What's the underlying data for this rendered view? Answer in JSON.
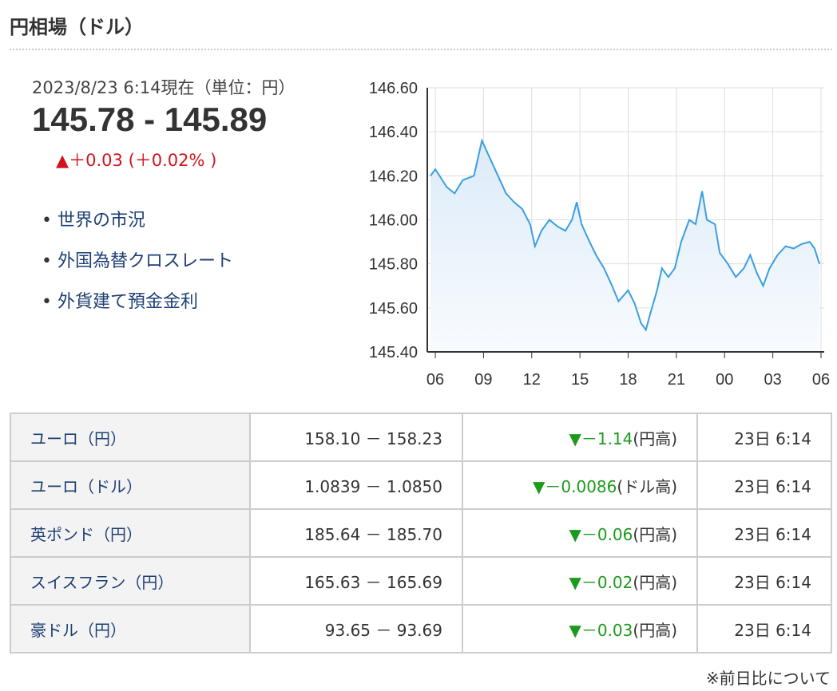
{
  "header": {
    "title": "円相場（ドル）"
  },
  "quote": {
    "timestamp": "2023/8/23 6:14現在（単位：円）",
    "rate": "145.78 - 145.89",
    "change": "▲＋0.03 (＋0.02% )"
  },
  "links": [
    "世界の市況",
    "外国為替クロスレート",
    "外貨建て預金金利"
  ],
  "chart_data": {
    "type": "line",
    "color": "#3a9ee0",
    "grid": true,
    "x": [
      -0.3,
      0.0,
      0.7,
      1.2,
      1.7,
      2.4,
      2.9,
      3.4,
      3.9,
      4.4,
      4.9,
      5.4,
      5.9,
      6.2,
      6.6,
      7.1,
      7.6,
      8.1,
      8.5,
      8.8,
      9.1,
      9.6,
      10.0,
      10.5,
      11.0,
      11.4,
      12.0,
      12.4,
      12.8,
      13.1,
      13.4,
      13.8,
      14.1,
      14.5,
      14.9,
      15.3,
      15.8,
      16.2,
      16.6,
      16.9,
      17.4,
      17.7,
      18.2,
      18.7,
      19.2,
      19.6,
      20.0,
      20.4,
      20.8,
      21.3,
      21.8,
      22.3,
      22.8,
      23.3,
      23.6,
      23.9
    ],
    "values": [
      146.2,
      146.23,
      146.15,
      146.12,
      146.18,
      146.2,
      146.36,
      146.28,
      146.2,
      146.12,
      146.08,
      146.05,
      145.98,
      145.88,
      145.95,
      146.0,
      145.97,
      145.95,
      146.0,
      146.08,
      145.98,
      145.9,
      145.84,
      145.78,
      145.7,
      145.63,
      145.68,
      145.62,
      145.53,
      145.5,
      145.58,
      145.68,
      145.78,
      145.74,
      145.78,
      145.9,
      146.0,
      145.98,
      146.13,
      146.0,
      145.98,
      145.85,
      145.8,
      145.74,
      145.78,
      145.84,
      145.76,
      145.7,
      145.78,
      145.84,
      145.88,
      145.87,
      145.89,
      145.9,
      145.87,
      145.8
    ],
    "xlim": [
      -0.5,
      24.2
    ],
    "xticks": [
      {
        "value": 0,
        "label": "06"
      },
      {
        "value": 3,
        "label": "09"
      },
      {
        "value": 6,
        "label": "12"
      },
      {
        "value": 9,
        "label": "15"
      },
      {
        "value": 12,
        "label": "18"
      },
      {
        "value": 15,
        "label": "21"
      },
      {
        "value": 18,
        "label": "00"
      },
      {
        "value": 21,
        "label": "03"
      },
      {
        "value": 24,
        "label": "06"
      }
    ],
    "ylim": [
      145.4,
      146.6
    ],
    "yticks": [
      {
        "value": 145.4,
        "label": "145.40"
      },
      {
        "value": 145.6,
        "label": "145.60"
      },
      {
        "value": 145.8,
        "label": "145.80"
      },
      {
        "value": 146.0,
        "label": "146.00"
      },
      {
        "value": 146.2,
        "label": "146.20"
      },
      {
        "value": 146.4,
        "label": "146.40"
      },
      {
        "value": 146.6,
        "label": "146.60"
      }
    ]
  },
  "table": {
    "rows": [
      {
        "name": "ユーロ（円）",
        "rate": "158.10 － 158.23",
        "change": "▼－1.14",
        "note": "(円高)",
        "time": "23日 6:14"
      },
      {
        "name": "ユーロ（ドル）",
        "rate": "1.0839 － 1.0850",
        "change": "▼－0.0086",
        "note": "(ドル高)",
        "time": "23日 6:14"
      },
      {
        "name": "英ポンド（円）",
        "rate": "185.64 － 185.70",
        "change": "▼－0.06",
        "note": "(円高)",
        "time": "23日 6:14"
      },
      {
        "name": "スイスフラン（円）",
        "rate": "165.63 － 165.69",
        "change": "▼－0.02",
        "note": "(円高)",
        "time": "23日 6:14"
      },
      {
        "name": "豪ドル（円）",
        "rate": "93.65 － 93.69",
        "change": "▼－0.03",
        "note": "(円高)",
        "time": "23日 6:14"
      }
    ]
  },
  "footnote": "※前日比について"
}
